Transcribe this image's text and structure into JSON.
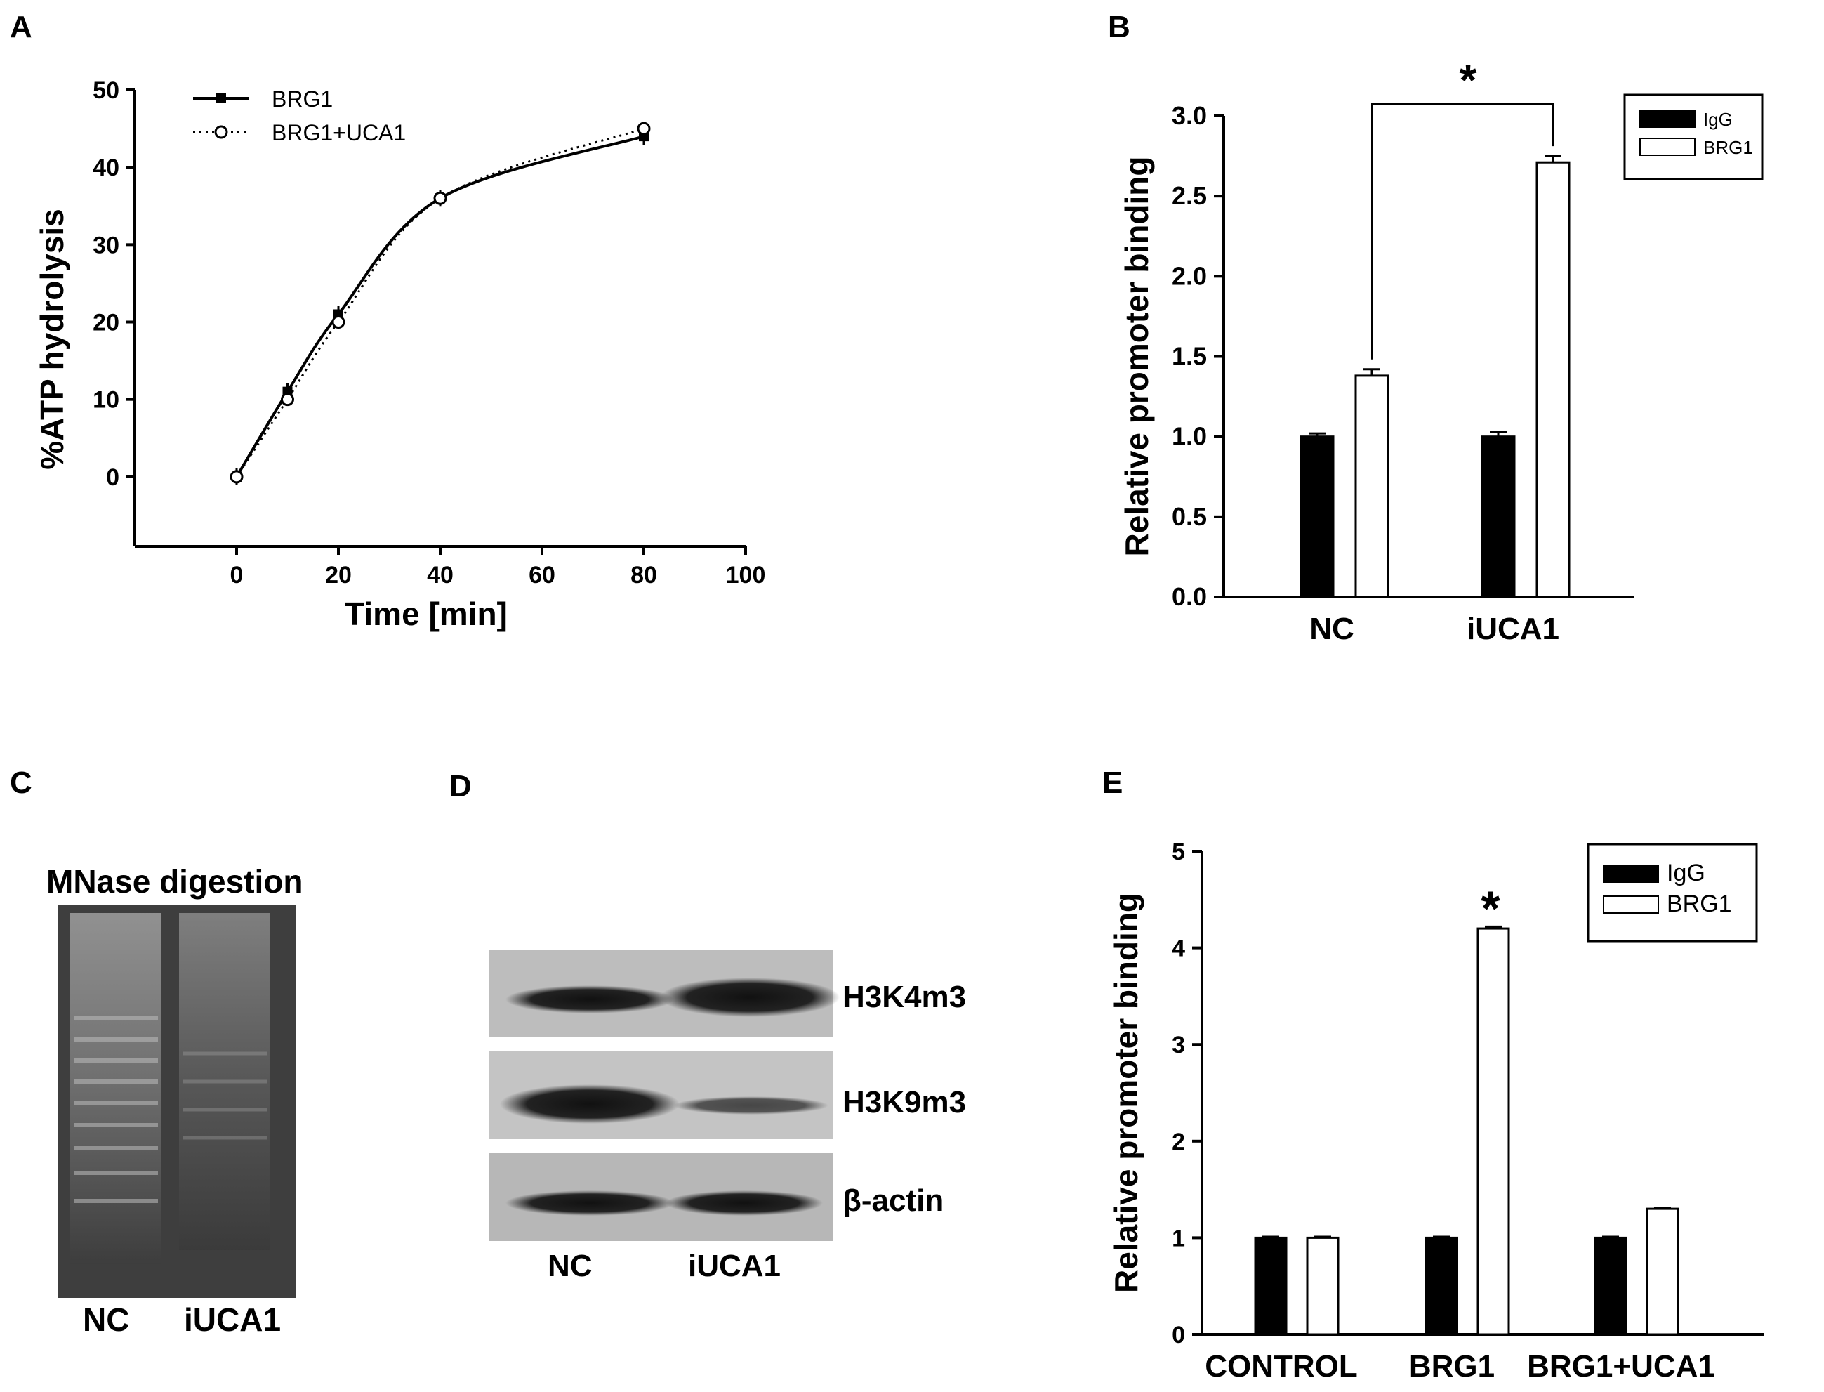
{
  "panels": {
    "a": {
      "letter": "A"
    },
    "b": {
      "letter": "B"
    },
    "c": {
      "letter": "C"
    },
    "d": {
      "letter": "D"
    },
    "e": {
      "letter": "E"
    }
  },
  "chart_data": [
    {
      "panel": "A",
      "type": "line",
      "xlabel": "Time [min]",
      "ylabel": "%ATP hydrolysis",
      "xlim": [
        -20,
        100
      ],
      "ylim": [
        -9,
        50
      ],
      "xticks": [
        0,
        20,
        40,
        60,
        80,
        100
      ],
      "yticks": [
        0,
        10,
        20,
        30,
        40,
        50
      ],
      "legend_position": "top-left",
      "series": [
        {
          "name": "BRG1",
          "style": "solid",
          "x": [
            0,
            10,
            20,
            40,
            80
          ],
          "y": [
            0,
            11,
            21,
            36,
            44
          ]
        },
        {
          "name": "BRG1+UCA1",
          "style": "dotted",
          "x": [
            0,
            10,
            20,
            40,
            80
          ],
          "y": [
            0,
            10,
            20,
            36,
            45
          ]
        }
      ]
    },
    {
      "panel": "B",
      "type": "bar",
      "categories": [
        "NC",
        "iUCA1"
      ],
      "ylabel": "Relative promoter binding",
      "ylim": [
        0,
        3.0
      ],
      "yticks": [
        "0.0",
        "0.5",
        "1.0",
        "1.5",
        "2.0",
        "2.5",
        "3.0"
      ],
      "legend_position": "top-right",
      "series": [
        {
          "name": "IgG",
          "color": "#000000",
          "values": [
            1.0,
            1.0
          ],
          "errors": [
            0.02,
            0.03
          ]
        },
        {
          "name": "BRG1",
          "color": "#ffffff",
          "values": [
            1.38,
            2.71
          ],
          "errors": [
            0.04,
            0.04
          ]
        }
      ],
      "significance": {
        "label": "*"
      }
    },
    {
      "panel": "E",
      "type": "bar",
      "categories": [
        "CONTROL",
        "BRG1",
        "BRG1+UCA1"
      ],
      "ylabel": "Relative promoter binding",
      "ylim": [
        0,
        5
      ],
      "yticks": [
        "0",
        "1",
        "2",
        "3",
        "4",
        "5"
      ],
      "legend_position": "top-right",
      "series": [
        {
          "name": "IgG",
          "color": "#000000",
          "values": [
            1.0,
            1.0,
            1.0
          ],
          "errors": [
            0.01,
            0.01,
            0.01
          ]
        },
        {
          "name": "BRG1",
          "color": "#ffffff",
          "values": [
            1.0,
            4.2,
            1.3
          ],
          "errors": [
            0.01,
            0.02,
            0.01
          ]
        }
      ],
      "significance": {
        "label": "*"
      }
    }
  ],
  "gel_c": {
    "title": "MNase digestion",
    "lanes": [
      "NC",
      "iUCA1"
    ]
  },
  "blot_d": {
    "rows": [
      "H3K4m3",
      "H3K9m3",
      "β-actin"
    ],
    "lanes": [
      "NC",
      "iUCA1"
    ]
  }
}
